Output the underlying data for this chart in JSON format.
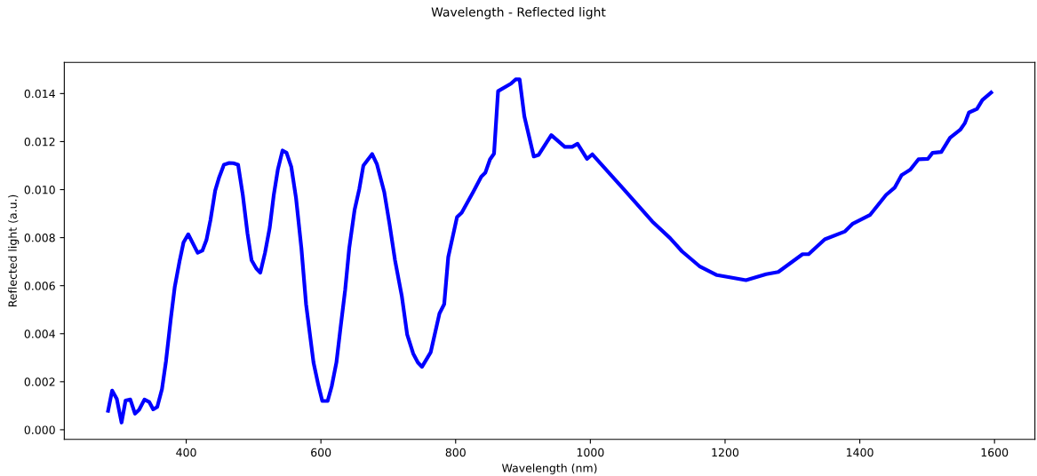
{
  "chart_data": {
    "type": "line",
    "title": "Wavelength - Reflected light",
    "xlabel": "Wavelength (nm)",
    "ylabel": "Reflected light (a.u.)",
    "x": [
      284,
      290,
      297,
      304,
      310,
      317,
      324,
      330,
      338,
      345,
      351,
      357,
      364,
      370,
      377,
      383,
      390,
      396,
      403,
      417,
      424,
      430,
      436,
      443,
      449,
      456,
      464,
      470,
      477,
      484,
      491,
      497,
      504,
      510,
      517,
      524,
      530,
      536,
      543,
      549,
      556,
      563,
      571,
      578,
      589,
      596,
      602,
      610,
      616,
      623,
      629,
      636,
      642,
      650,
      657,
      663,
      676,
      683,
      694,
      702,
      710,
      720,
      728,
      737,
      744,
      750,
      763,
      776,
      783,
      789,
      802,
      809,
      826,
      838,
      844,
      851,
      857,
      863,
      882,
      889,
      895,
      902,
      916,
      923,
      942,
      962,
      973,
      981,
      995,
      1003,
      1049,
      1092,
      1118,
      1136,
      1162,
      1188,
      1205,
      1231,
      1261,
      1279,
      1315,
      1324,
      1348,
      1378,
      1389,
      1415,
      1439,
      1452,
      1462,
      1475,
      1487,
      1501,
      1508,
      1521,
      1534,
      1549,
      1556,
      1562,
      1574,
      1582,
      1595
    ],
    "series": [
      {
        "color": "#0000ff",
        "values": [
          0.00079,
          0.00163,
          0.00128,
          0.0003,
          0.00122,
          0.00126,
          0.00067,
          0.00083,
          0.00126,
          0.00116,
          0.00085,
          0.00095,
          0.00169,
          0.00286,
          0.00459,
          0.00595,
          0.007,
          0.0078,
          0.00814,
          0.00737,
          0.00746,
          0.0079,
          0.00873,
          0.00996,
          0.01052,
          0.01104,
          0.01111,
          0.0111,
          0.01104,
          0.00978,
          0.00817,
          0.00706,
          0.00672,
          0.00654,
          0.00737,
          0.00842,
          0.00978,
          0.01083,
          0.01163,
          0.01153,
          0.01095,
          0.00966,
          0.00756,
          0.00521,
          0.0028,
          0.00188,
          0.0012,
          0.0012,
          0.00181,
          0.0028,
          0.00422,
          0.00583,
          0.00756,
          0.00916,
          0.01003,
          0.011,
          0.01148,
          0.01107,
          0.0099,
          0.00854,
          0.00706,
          0.00558,
          0.00397,
          0.00317,
          0.0028,
          0.00262,
          0.00323,
          0.00484,
          0.00523,
          0.00719,
          0.00885,
          0.00904,
          0.0099,
          0.01054,
          0.0107,
          0.01126,
          0.0115,
          0.0141,
          0.01441,
          0.01459,
          0.01459,
          0.01305,
          0.01138,
          0.01144,
          0.01227,
          0.01178,
          0.01178,
          0.01191,
          0.01128,
          0.01147,
          0.01003,
          0.00867,
          0.00799,
          0.00743,
          0.00681,
          0.00644,
          0.00636,
          0.00623,
          0.00648,
          0.00657,
          0.00731,
          0.00731,
          0.00793,
          0.00826,
          0.00857,
          0.00894,
          0.00978,
          0.01009,
          0.0106,
          0.01083,
          0.01126,
          0.01128,
          0.01153,
          0.01157,
          0.01216,
          0.01249,
          0.01277,
          0.01321,
          0.01336,
          0.01373,
          0.01404
        ]
      }
    ],
    "xlim": [
      219,
      1660
    ],
    "ylim": [
      -0.0004,
      0.0153
    ],
    "xticks": [
      400,
      600,
      800,
      1000,
      1200,
      1400,
      1600
    ],
    "yticks": [
      {
        "value": 0,
        "label": "0.000"
      },
      {
        "value": 0.002,
        "label": "0.002"
      },
      {
        "value": 0.004,
        "label": "0.004"
      },
      {
        "value": 0.006,
        "label": "0.006"
      },
      {
        "value": 0.008,
        "label": "0.008"
      },
      {
        "value": 0.01,
        "label": "0.010"
      },
      {
        "value": 0.012,
        "label": "0.012"
      },
      {
        "value": 0.014,
        "label": "0.014"
      }
    ],
    "grid": false,
    "legend": false
  }
}
